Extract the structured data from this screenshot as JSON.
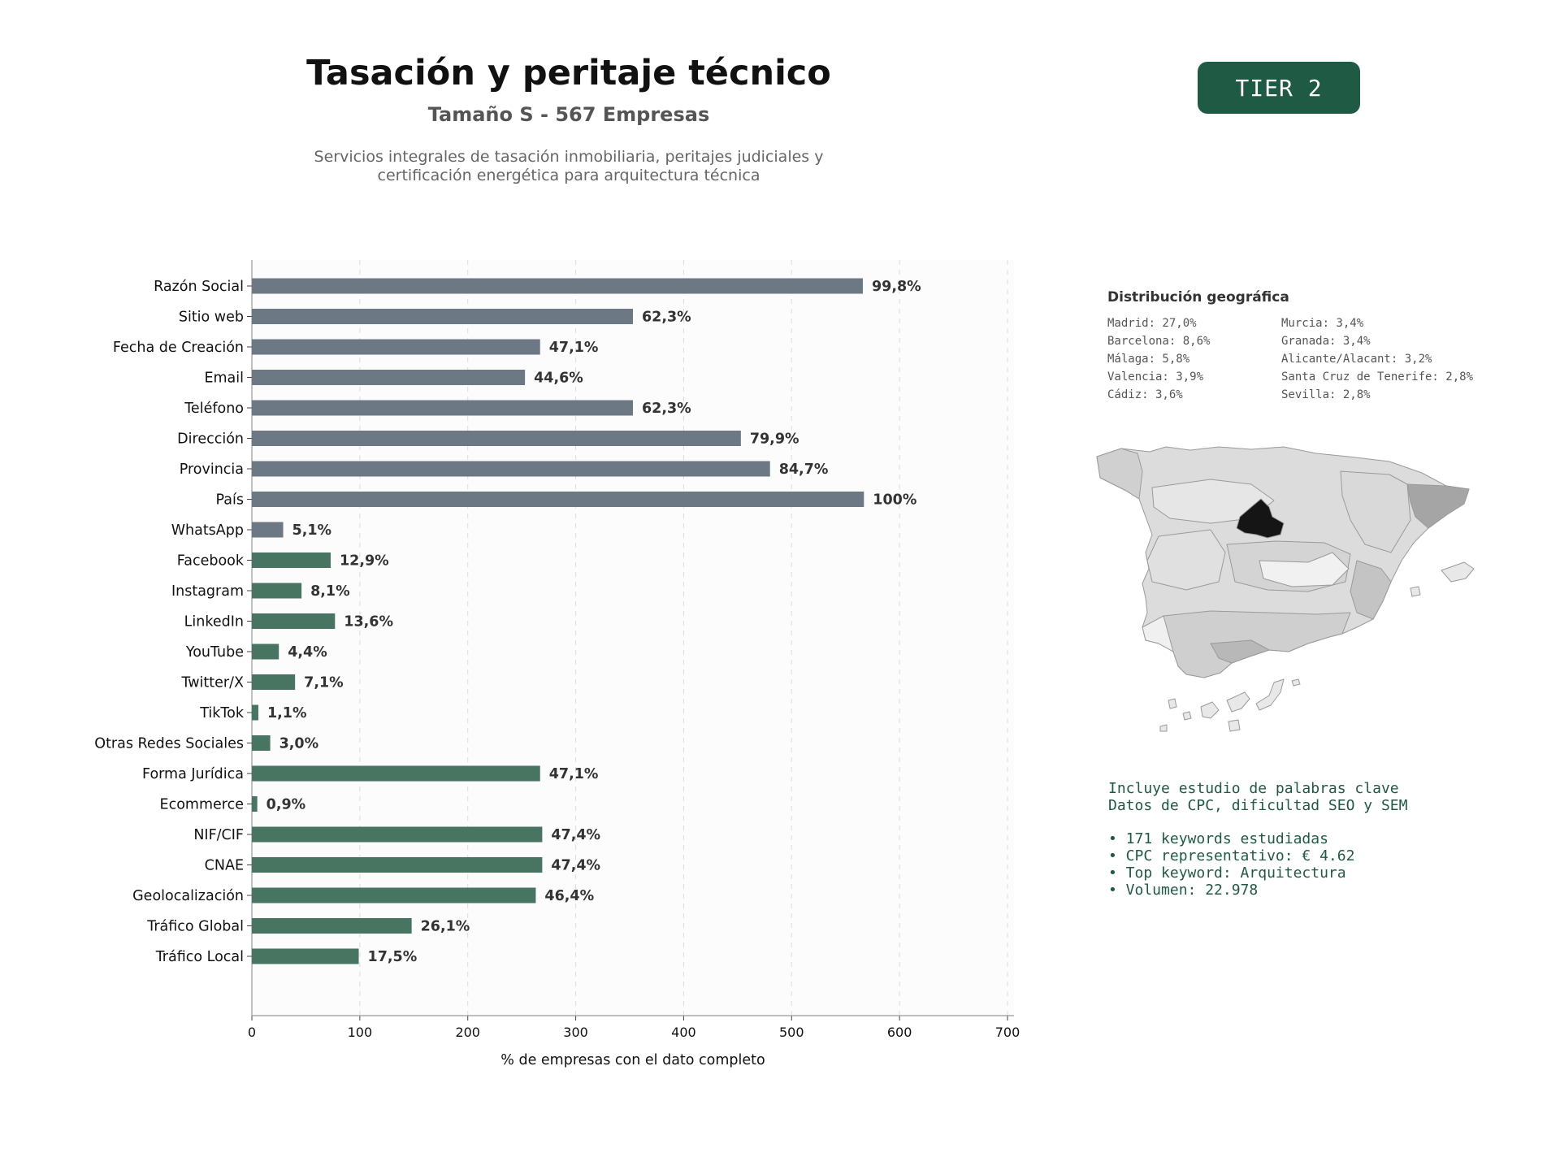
{
  "header": {
    "title": "Tasación y peritaje técnico",
    "subtitle": "Tamaño S - 567 Empresas",
    "description_line1": "Servicios integrales de tasación inmobiliaria, peritajes judiciales y",
    "description_line2": "certificación energética para arquitectura técnica",
    "tier_label": "TIER 2"
  },
  "chart_data": {
    "type": "bar",
    "orientation": "horizontal",
    "xlabel": "% de empresas con el dato completo",
    "xlim": [
      0,
      700
    ],
    "xticks": [
      0,
      100,
      200,
      300,
      400,
      500,
      600,
      700
    ],
    "grid": "vertical-dashed",
    "categories": [
      "Razón Social",
      "Sitio web",
      "Fecha de Creación",
      "Email",
      "Teléfono",
      "Dirección",
      "Provincia",
      "País",
      "WhatsApp",
      "Facebook",
      "Instagram",
      "LinkedIn",
      "YouTube",
      "Twitter/X",
      "TikTok",
      "Otras Redes Sociales",
      "Forma Jurídica",
      "Ecommerce",
      "NIF/CIF",
      "CNAE",
      "Geolocalización",
      "Tráfico Global",
      "Tráfico Local"
    ],
    "values": [
      566,
      353,
      267,
      253,
      353,
      453,
      480,
      567,
      29,
      73,
      46,
      77,
      25,
      40,
      6,
      17,
      267,
      5,
      269,
      269,
      263,
      148,
      99
    ],
    "labels": [
      "99,8%",
      "62,3%",
      "47,1%",
      "44,6%",
      "62,3%",
      "79,9%",
      "84,7%",
      "100%",
      "5,1%",
      "12,9%",
      "8,1%",
      "13,6%",
      "4,4%",
      "7,1%",
      "1,1%",
      "3,0%",
      "47,1%",
      "0,9%",
      "47,4%",
      "47,4%",
      "46,4%",
      "26,1%",
      "17,5%"
    ],
    "groups": [
      "basic",
      "basic",
      "basic",
      "basic",
      "basic",
      "basic",
      "basic",
      "basic",
      "basic",
      "extra",
      "extra",
      "extra",
      "extra",
      "extra",
      "extra",
      "extra",
      "extra",
      "extra",
      "extra",
      "extra",
      "extra",
      "extra",
      "extra"
    ],
    "colors": {
      "basic": "#6c7883",
      "extra": "#487462"
    }
  },
  "geo": {
    "title": "Distribución geográfica",
    "items": [
      "Madrid: 27,0%",
      "Murcia: 3,4%",
      "Barcelona: 8,6%",
      "Granada: 3,4%",
      "Málaga: 5,8%",
      "Alicante/Alacant: 3,2%",
      "Valencia: 3,9%",
      "Santa Cruz de Tenerife: 2,8%",
      "Cádiz: 3,6%",
      "Sevilla: 2,8%"
    ]
  },
  "keywords": {
    "line1": "Incluye estudio de palabras clave",
    "line2": "Datos de CPC, dificultad SEO y SEM",
    "bullets": [
      "• 171 keywords estudiadas",
      "• CPC representativo: € 4.62",
      "• Top keyword: Arquitectura",
      "• Volumen: 22.978"
    ]
  }
}
